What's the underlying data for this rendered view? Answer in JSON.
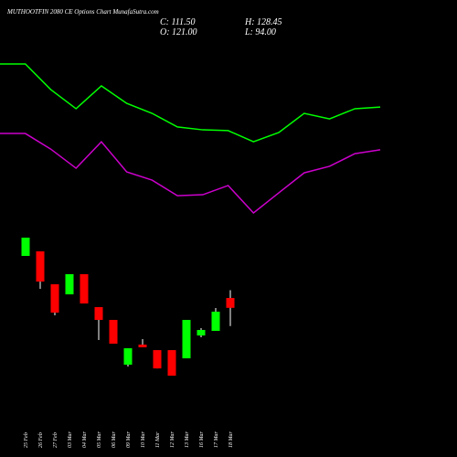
{
  "chart_data": [
    {
      "type": "candlestick",
      "title": "MUTHOOTFIN 2080 CE Options Chart MunafaSutra.com",
      "ohlc_labels": [
        "C: 111.50",
        "H: 128.45",
        "O: 121.00",
        "L: 94.00"
      ],
      "categories": [
        "25 Feb",
        "26 Feb",
        "27 Feb",
        "03 Mar",
        "04 Mar",
        "05 Mar",
        "06 Mar",
        "09 Mar",
        "10 Mar",
        "11 Mar",
        "12 Mar",
        "13 Mar",
        "16 Mar",
        "17 Mar",
        "18 Mar"
      ],
      "open": [
        161.5,
        165.9,
        134.2,
        124.5,
        143.9,
        112.2,
        99.9,
        56.8,
        76.1,
        70.8,
        70.8,
        62.9,
        84.9,
        89.3,
        121.0
      ],
      "high": [
        179.1,
        165.9,
        134.2,
        143.9,
        143.9,
        112.2,
        99.9,
        72.6,
        81.4,
        70.8,
        70.8,
        99.9,
        92.0,
        111.3,
        128.45
      ],
      "low": [
        161.5,
        129.8,
        104.3,
        124.5,
        115.7,
        80.5,
        77.0,
        55.0,
        73.5,
        53.2,
        46.2,
        62.9,
        83.2,
        89.3,
        94.0
      ],
      "close": [
        179.1,
        136.8,
        106.9,
        143.9,
        115.7,
        99.9,
        77.0,
        72.6,
        73.5,
        53.2,
        46.2,
        99.9,
        90.2,
        107.8,
        111.5
      ],
      "ylim": [
        38.3,
        187.9
      ],
      "up_color": "#00ff00",
      "down_color": "#ff0000"
    },
    {
      "type": "line",
      "ylim": [
        0,
        100
      ],
      "series": [
        {
          "color": "#00ff00",
          "values": [
            85.7,
            85.7,
            72.4,
            62.4,
            74.3,
            65.2,
            60.0,
            52.9,
            51.4,
            51.0,
            45.2,
            50.0,
            60.0,
            57.1,
            62.4,
            63.3
          ]
        },
        {
          "color": "#cc00cc",
          "values": [
            49.5,
            49.5,
            41.4,
            31.4,
            45.2,
            29.5,
            25.2,
            17.1,
            17.6,
            22.4,
            8.1,
            18.6,
            29.0,
            32.4,
            39.0,
            41.0
          ]
        }
      ]
    }
  ]
}
